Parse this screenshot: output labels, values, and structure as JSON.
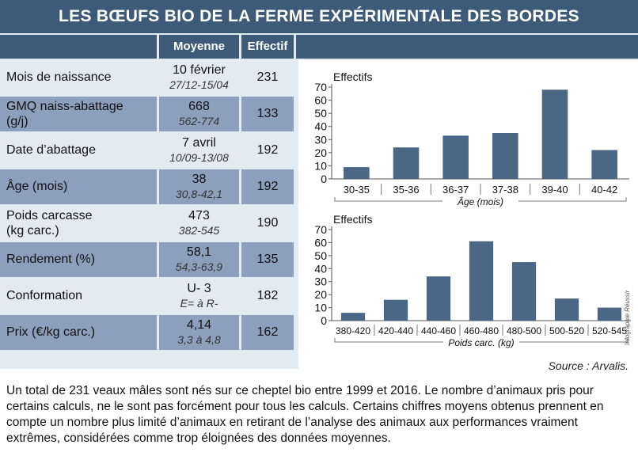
{
  "title": "LES BŒUFS BIO DE LA FERME EXPÉRIMENTALE DES BORDES",
  "table": {
    "headers": {
      "moyenne": "Moyenne",
      "effectif": "Effectif"
    },
    "rows": [
      {
        "label": "Mois de naissance",
        "label2": "",
        "moyenne": "10 février",
        "range": "27/12-15/04",
        "effectif": "231"
      },
      {
        "label": "GMQ naiss-abattage",
        "label2": "(g/j)",
        "moyenne": "668",
        "range": "562-774",
        "effectif": "133"
      },
      {
        "label": "Date d’abattage",
        "label2": "",
        "moyenne": "7 avril",
        "range": "10/09-13/08",
        "effectif": "192"
      },
      {
        "label": "Âge (mois)",
        "label2": "",
        "moyenne": "38",
        "range": "30,8-42,1",
        "effectif": "192"
      },
      {
        "label": "Poids carcasse",
        "label2": "(kg carc.)",
        "moyenne": "473",
        "range": "382-545",
        "effectif": "190"
      },
      {
        "label": "Rendement (%)",
        "label2": "",
        "moyenne": "58,1",
        "range": "54,3-63,9",
        "effectif": "135"
      },
      {
        "label": "Conformation",
        "label2": "",
        "moyenne": "U- 3",
        "range": "E= à R-",
        "effectif": "182"
      },
      {
        "label": "Prix (€/kg carc.)",
        "label2": "",
        "moyenne": "4,14",
        "range": "3,3 à 4,8",
        "effectif": "162"
      }
    ]
  },
  "chart_data": [
    {
      "type": "bar",
      "ylabel": "Effectifs",
      "xlabel": "Âge (mois)",
      "categories": [
        "30-35",
        "35-36",
        "36-37",
        "37-38",
        "39-40",
        "40-42"
      ],
      "values": [
        9,
        24,
        33,
        35,
        68,
        22
      ],
      "yticks": [
        0,
        10,
        20,
        30,
        40,
        50,
        60,
        70
      ],
      "ylim": [
        0,
        70
      ],
      "grid": false,
      "bar_color": "#4a6885"
    },
    {
      "type": "bar",
      "ylabel": "Effectifs",
      "xlabel": "Poids carc. (kg)",
      "categories": [
        "380-420",
        "420-440",
        "440-460",
        "460-480",
        "480-500",
        "500-520",
        "520-545"
      ],
      "values": [
        6,
        16,
        34,
        61,
        45,
        17,
        10
      ],
      "yticks": [
        0,
        10,
        20,
        30,
        40,
        50,
        60,
        70
      ],
      "ylim": [
        0,
        70
      ],
      "grid": false,
      "bar_color": "#4a6885"
    }
  ],
  "credit": "Infographie Réussir",
  "source": "Source : Arvalis.",
  "note": "Un total de 231 veaux mâles sont nés sur ce cheptel bio entre 1999 et 2016. Le nombre d’animaux pris pour certains calculs, ne le sont pas forcément pour tous les calculs. Certains chiffres moyens obtenus prennent en compte un nombre plus limité d’animaux en retirant de l’analyse des animaux aux performances vraiment extrêmes, considérées comme trop éloignées des données moyennes."
}
